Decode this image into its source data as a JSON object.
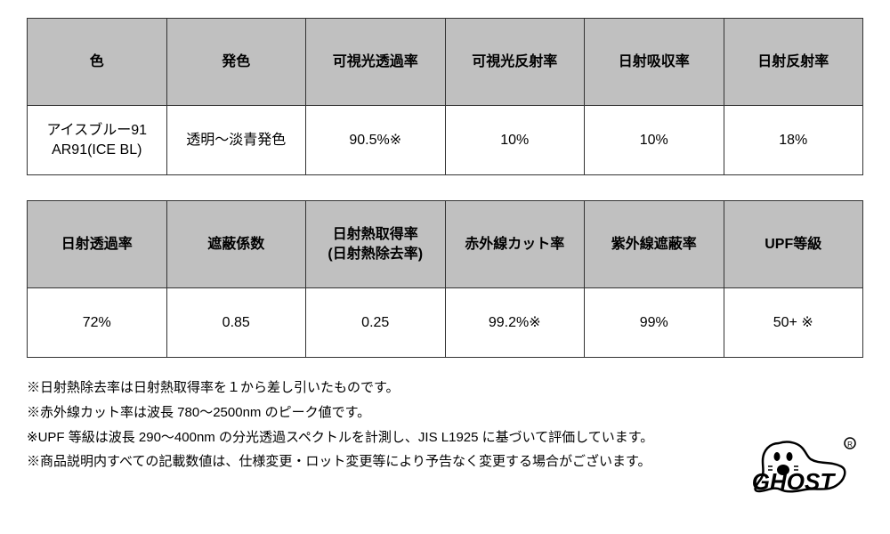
{
  "table1": {
    "headers": [
      "色",
      "発色",
      "可視光透過率",
      "可視光反射率",
      "日射吸収率",
      "日射反射率"
    ],
    "row": [
      "アイスブルー91\nAR91(ICE BL)",
      "透明～淡青発色",
      "90.5%※",
      "10%",
      "10%",
      "18%"
    ]
  },
  "table2": {
    "headers": [
      "日射透過率",
      "遮蔽係数",
      "日射熱取得率\n(日射熱除去率)",
      "赤外線カット率",
      "紫外線遮蔽率",
      "UPF等級"
    ],
    "row": [
      "72%",
      "0.85",
      "0.25",
      "99.2%※",
      "99%",
      "50+ ※"
    ]
  },
  "notes": [
    "※日射熱除去率は日射熱取得率を１から差し引いたものです。",
    "※赤外線カット率は波長 780～2500nm のピーク値です。",
    "※UPF 等級は波長 290～400nm の分光透過スペクトルを計測し、JIS L1925 に基づいて評価しています。",
    "※商品説明内すべての記載数値は、仕様変更・ロット変更等により予告なく変更する場合がございます。"
  ],
  "colors": {
    "header_bg": "#c0c0c0",
    "border": "#333333",
    "text": "#000000",
    "bg": "#ffffff"
  },
  "logo": {
    "name": "GHOST",
    "registered": true
  }
}
